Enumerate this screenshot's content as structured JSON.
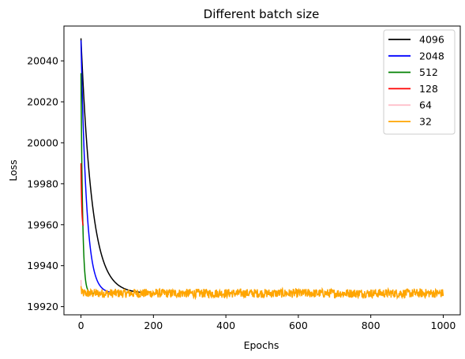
{
  "chart_data": {
    "type": "line",
    "title": "Different batch size",
    "xlabel": "Epochs",
    "ylabel": "Loss",
    "xlim": [
      -47,
      1047
    ],
    "ylim": [
      19916,
      20057
    ],
    "xticks": [
      0,
      200,
      400,
      600,
      800,
      1000
    ],
    "yticks": [
      19920,
      19940,
      19960,
      19980,
      20000,
      20020,
      20040
    ],
    "grid": false,
    "legend_position": "top-right",
    "series": [
      {
        "name": "4096",
        "color": "#000000",
        "x_start": 0,
        "x_end": 180,
        "y_start": 20051,
        "y_floor": 19926.5,
        "decay_epochs": 30,
        "noise": 0
      },
      {
        "name": "2048",
        "color": "#0000ff",
        "x_start": 0,
        "x_end": 95,
        "y_start": 20050,
        "y_floor": 19926.5,
        "decay_epochs": 15,
        "noise": 0
      },
      {
        "name": "512",
        "color": "#008000",
        "x_start": 0,
        "x_end": 35,
        "y_start": 20034,
        "y_floor": 19926.5,
        "decay_epochs": 4.5,
        "noise": 0
      },
      {
        "name": "128",
        "color": "#ff0000",
        "x_start": 0,
        "x_end": 6,
        "y_start": 19990,
        "y_floor": 19958,
        "decay_epochs": 2,
        "noise": 0
      },
      {
        "name": "64",
        "color": "#ffc0cb",
        "x_start": 0,
        "x_end": 5,
        "y_start": 19933,
        "y_floor": 19926.5,
        "decay_epochs": 1,
        "noise": 0
      },
      {
        "name": "32",
        "color": "#ffa500",
        "x_start": 0,
        "x_end": 1000,
        "y_start": 19930,
        "y_floor": 19926.5,
        "decay_epochs": 1,
        "noise": 2.2
      }
    ]
  }
}
